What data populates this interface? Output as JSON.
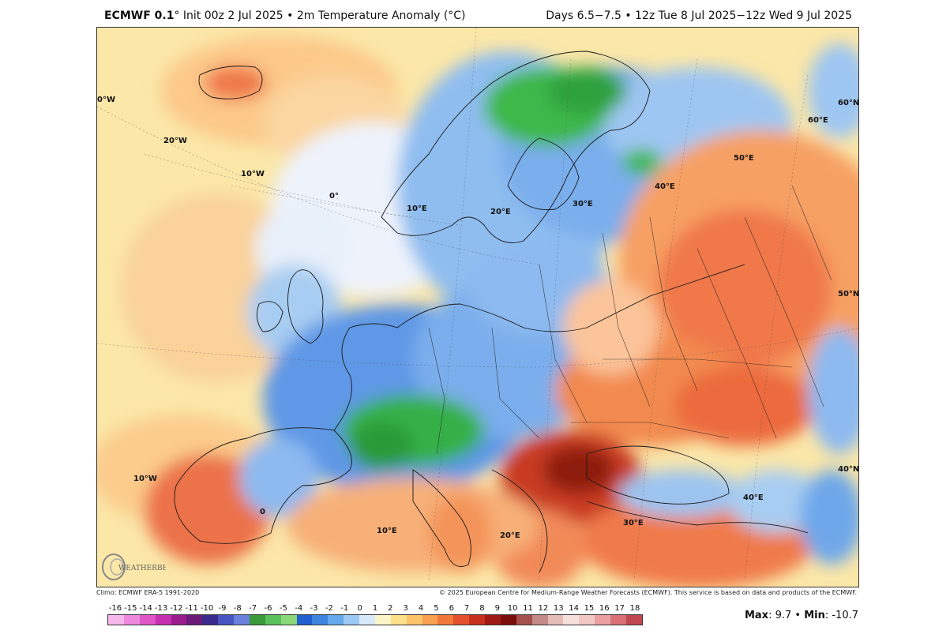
{
  "header": {
    "model": "ECMWF 0.1",
    "title_rest": "° Init 00z 2 Jul 2025 • 2m Temperature Anomaly (°C)",
    "valid": "Days 6.5−7.5 • 12z Tue 8 Jul 2025−12z Wed 9 Jul 2025"
  },
  "map_labels": {
    "lon_0_north": "0°W",
    "lon_20w": "20°W",
    "lon_10w": "10°W",
    "lon_0": "0°",
    "lon_10e": "10°E",
    "lon_20e": "20°E",
    "lon_30e": "30°E",
    "lon_40e": "40°E",
    "lon_50e": "50°E",
    "lon_60e": "60°E",
    "lat_60n": "60°N",
    "lat_50n": "50°N",
    "lat_40n": "40°N",
    "lon_10w_south": "10°W",
    "lon_0_south": "0",
    "lon_10e_south": "10°E",
    "lon_20e_south": "20°E",
    "lon_30e_south": "30°E",
    "lon_40e_south": "40°E"
  },
  "logo_text": "WEATHERBELL",
  "credits": {
    "left": "Climo: ECMWF ERA-5 1991-2020",
    "right": "© 2025 European Centre for Medium-Range Weather Forecasts (ECMWF). This service is based on data and products of the ECMWF."
  },
  "legend": {
    "ticks": [
      "-16",
      "-15",
      "-14",
      "-13",
      "-12",
      "-11",
      "-10",
      "-9",
      "-8",
      "-7",
      "-6",
      "-5",
      "-4",
      "-3",
      "-2",
      "-1",
      "0",
      "1",
      "2",
      "3",
      "4",
      "5",
      "6",
      "7",
      "8",
      "9",
      "10",
      "11",
      "12",
      "13",
      "14",
      "15",
      "16",
      "17",
      "18"
    ],
    "colors": [
      "#f6b8ec",
      "#ee88dc",
      "#e055c8",
      "#c630ae",
      "#9a1c8c",
      "#6b1a7a",
      "#3a2a8c",
      "#4a55c4",
      "#6a80dc",
      "#3a9a3a",
      "#5ac05a",
      "#8ad87a",
      "#1f5fd0",
      "#3d85e0",
      "#64a8ec",
      "#9ccaf4",
      "#d8eafa",
      "#fbf5c8",
      "#fde08a",
      "#fcc46a",
      "#f8a04e",
      "#f2783a",
      "#e2502c",
      "#c8301e",
      "#a01a14",
      "#7a0e0c",
      "#a4504c",
      "#c48a88",
      "#e4bcb8",
      "#f6e0dc",
      "#f0c8c4",
      "#e8a0a0",
      "#d87074",
      "#c04850"
    ]
  },
  "stats": {
    "max_label": "Max",
    "max_value": ": 9.7 • ",
    "min_label": "Min",
    "min_value": ": -10.7"
  }
}
